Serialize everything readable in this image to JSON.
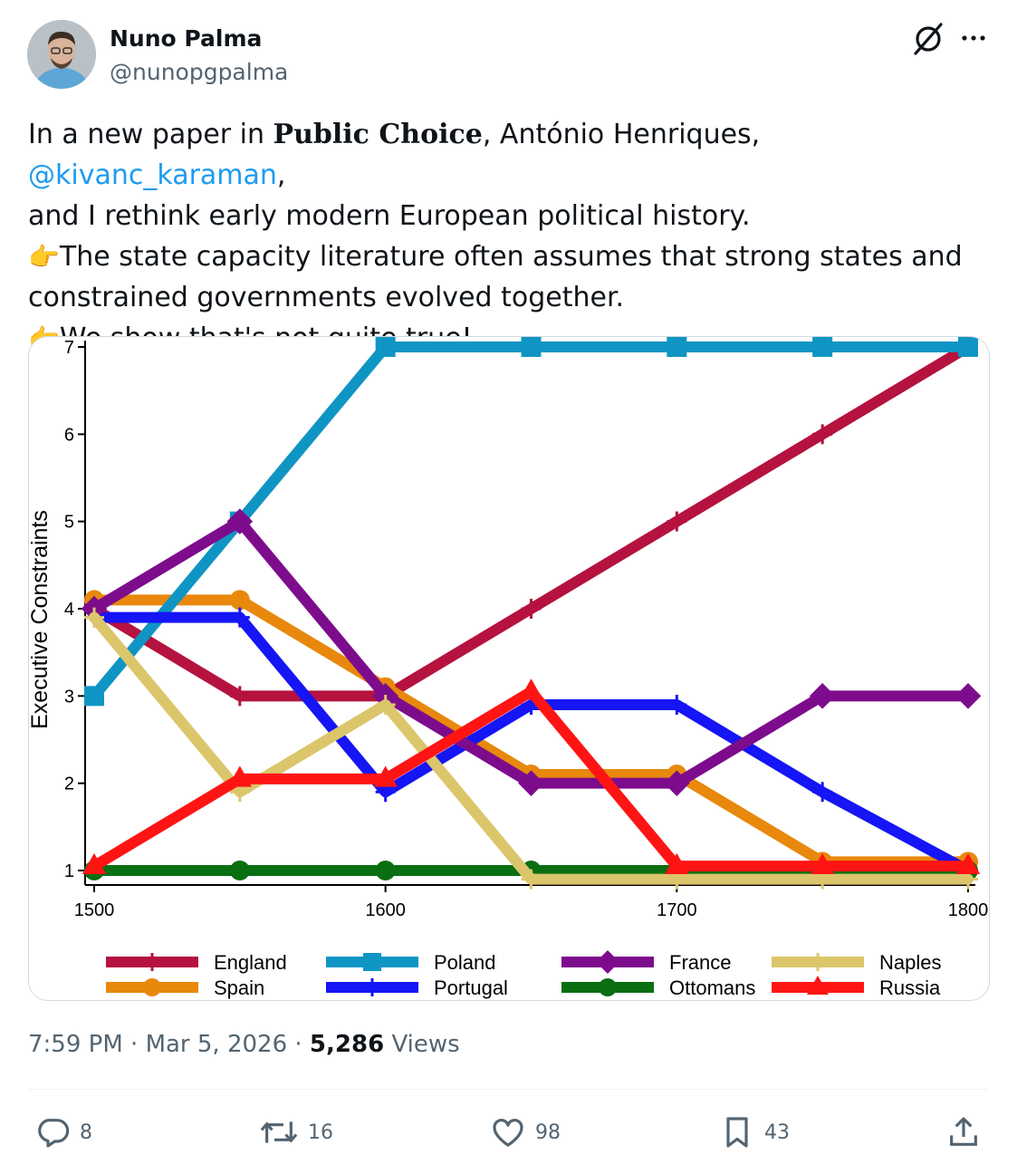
{
  "author": {
    "name": "Nuno Palma",
    "handle": "@nunopgpalma"
  },
  "tweet": {
    "part1": "In a new paper in ",
    "journal": "Public Choice",
    "part2": ", António Henriques, ",
    "mention": "@kivanc_karaman",
    "part3": ",",
    "line2": "and I rethink early modern European political history.",
    "emoji": "👉",
    "line3": "The state capacity literature often assumes that strong states and",
    "line4": "constrained governments evolved together.",
    "line5": "We show that's not quite true!"
  },
  "meta": {
    "time": "7:59 PM",
    "date": "Mar 5, 2026",
    "views_count": "5,286",
    "views_label": "Views",
    "separator": "·"
  },
  "actions": {
    "replies": "8",
    "reposts": "16",
    "likes": "98",
    "bookmarks": "43"
  },
  "chart_data": {
    "type": "line",
    "ylabel": "Executive Constraints",
    "xlabel": "",
    "x": [
      1500,
      1550,
      1600,
      1650,
      1700,
      1750,
      1800
    ],
    "xticks": [
      1500,
      1600,
      1700,
      1800
    ],
    "yticks": [
      1,
      2,
      3,
      4,
      5,
      6,
      7
    ],
    "xlim": [
      1500,
      1800
    ],
    "ylim": [
      1,
      7
    ],
    "legend_position": "bottom",
    "series": [
      {
        "name": "England",
        "color": "#b5123f",
        "marker": "plus",
        "values": [
          4,
          3,
          3,
          4,
          5,
          6,
          7
        ]
      },
      {
        "name": "Spain",
        "color": "#e8880c",
        "marker": "circle",
        "values": [
          4.1,
          4.1,
          3.1,
          2.1,
          2.1,
          1.1,
          1.1
        ]
      },
      {
        "name": "Poland",
        "color": "#0f95c4",
        "marker": "square",
        "values": [
          3,
          5,
          7,
          7,
          7,
          7,
          7
        ]
      },
      {
        "name": "Portugal",
        "color": "#1515f5",
        "marker": "plus",
        "values": [
          3.9,
          3.9,
          1.9,
          2.9,
          2.9,
          1.9,
          1
        ]
      },
      {
        "name": "France",
        "color": "#7d0c8c",
        "marker": "diamond",
        "values": [
          4,
          5,
          3,
          2,
          2,
          3,
          3
        ]
      },
      {
        "name": "Ottomans",
        "color": "#0a6e12",
        "marker": "circle",
        "values": [
          1,
          1,
          1,
          1,
          1,
          1,
          1
        ]
      },
      {
        "name": "Naples",
        "color": "#dcc66b",
        "marker": "plus",
        "values": [
          3.9,
          1.9,
          2.9,
          0.9,
          0.9,
          0.9,
          0.9
        ]
      },
      {
        "name": "Russia",
        "color": "#ff1414",
        "marker": "triangle",
        "values": [
          1.05,
          2.05,
          2.05,
          3.05,
          1.05,
          1.05,
          1.05
        ]
      }
    ]
  }
}
